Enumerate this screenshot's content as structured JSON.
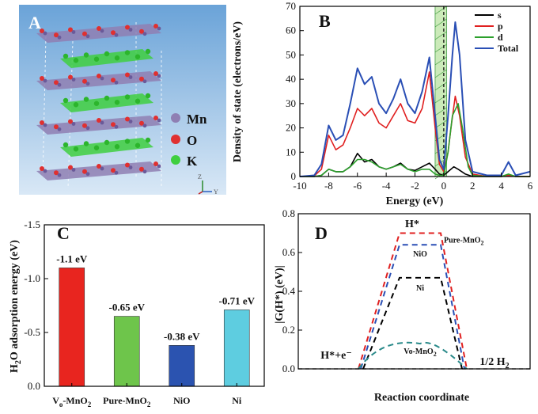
{
  "panel_a": {
    "letter": "A",
    "legend": [
      {
        "label": "Mn",
        "color": "#8f7fb3"
      },
      {
        "label": "O",
        "color": "#e03030"
      },
      {
        "label": "K",
        "color": "#3fcf3f"
      }
    ],
    "axis_z": "Z",
    "axis_y": "Y",
    "colors": {
      "bg_top": "#6aa3d8",
      "bg_bottom": "#d9e8f6",
      "mn": "#8f7fb3",
      "o": "#e03030",
      "k": "#3fcf3f"
    }
  },
  "chart_data": [
    {
      "panel": "B",
      "type": "line",
      "letter": "B",
      "xlabel": "Energy (eV)",
      "ylabel": "Density of state (electrons/eV)",
      "xlim": [
        -10,
        6
      ],
      "ylim": [
        0,
        70
      ],
      "xticks": [
        -10,
        -8,
        -6,
        -4,
        -2,
        0,
        2,
        4,
        6
      ],
      "yticks": [
        0,
        10,
        20,
        30,
        40,
        50,
        60,
        70
      ],
      "xtick_labels": [
        "-10",
        "-8",
        "-6",
        "-4",
        "-2",
        "0",
        "2",
        "4",
        "6"
      ],
      "ytick_labels": [
        "0",
        "10",
        "20",
        "30",
        "40",
        "50",
        "60",
        "70"
      ],
      "fermi_band": [
        -0.6,
        0.2
      ],
      "series": [
        {
          "name": "s",
          "color": "#000000",
          "points": [
            [
              -10,
              0
            ],
            [
              -9,
              0
            ],
            [
              -8.5,
              0.5
            ],
            [
              -8,
              3
            ],
            [
              -7.5,
              2
            ],
            [
              -7,
              2
            ],
            [
              -6.5,
              4
            ],
            [
              -6,
              9.5
            ],
            [
              -5.5,
              6
            ],
            [
              -5,
              7
            ],
            [
              -4.5,
              4
            ],
            [
              -4,
              3
            ],
            [
              -3.5,
              4
            ],
            [
              -3,
              5.5
            ],
            [
              -2.5,
              3
            ],
            [
              -2,
              2.5
            ],
            [
              -1.5,
              4
            ],
            [
              -1,
              5.5
            ],
            [
              -0.6,
              3
            ],
            [
              -0.3,
              1
            ],
            [
              0,
              0.5
            ],
            [
              0.3,
              2
            ],
            [
              0.7,
              4
            ],
            [
              1,
              3
            ],
            [
              1.5,
              1
            ],
            [
              2,
              0
            ],
            [
              3,
              0
            ],
            [
              4,
              0
            ],
            [
              4.5,
              0.5
            ],
            [
              5,
              0
            ],
            [
              6,
              0
            ]
          ]
        },
        {
          "name": "p",
          "color": "#e02020",
          "points": [
            [
              -10,
              0
            ],
            [
              -9,
              0.3
            ],
            [
              -8.5,
              3
            ],
            [
              -8,
              17
            ],
            [
              -7.5,
              11
            ],
            [
              -7,
              13
            ],
            [
              -6.5,
              20
            ],
            [
              -6,
              28
            ],
            [
              -5.5,
              25
            ],
            [
              -5,
              28
            ],
            [
              -4.5,
              22
            ],
            [
              -4,
              20
            ],
            [
              -3.5,
              25
            ],
            [
              -3,
              30
            ],
            [
              -2.5,
              23
            ],
            [
              -2,
              22
            ],
            [
              -1.5,
              28
            ],
            [
              -1,
              43
            ],
            [
              -0.6,
              20
            ],
            [
              -0.3,
              5
            ],
            [
              0,
              2
            ],
            [
              0.3,
              10
            ],
            [
              0.5,
              20
            ],
            [
              0.8,
              33
            ],
            [
              1.1,
              25
            ],
            [
              1.5,
              8
            ],
            [
              2,
              1
            ],
            [
              3,
              0
            ],
            [
              4,
              0
            ],
            [
              4.5,
              0.5
            ],
            [
              5,
              0
            ],
            [
              6,
              0
            ]
          ]
        },
        {
          "name": "d",
          "color": "#2ca02c",
          "points": [
            [
              -10,
              0
            ],
            [
              -9,
              0
            ],
            [
              -8.5,
              0.5
            ],
            [
              -8,
              3
            ],
            [
              -7.5,
              2
            ],
            [
              -7,
              2
            ],
            [
              -6.5,
              4
            ],
            [
              -6,
              7
            ],
            [
              -5.5,
              7
            ],
            [
              -5,
              6
            ],
            [
              -4.5,
              4
            ],
            [
              -4,
              3
            ],
            [
              -3.5,
              4
            ],
            [
              -3,
              5
            ],
            [
              -2.5,
              3
            ],
            [
              -2,
              2
            ],
            [
              -1.5,
              3
            ],
            [
              -1,
              3
            ],
            [
              -0.6,
              1
            ],
            [
              -0.3,
              0.5
            ],
            [
              0,
              0.5
            ],
            [
              0.3,
              10
            ],
            [
              0.6,
              25
            ],
            [
              1,
              30
            ],
            [
              1.3,
              20
            ],
            [
              1.7,
              4
            ],
            [
              2,
              0.5
            ],
            [
              3,
              0
            ],
            [
              4,
              0
            ],
            [
              4.5,
              1
            ],
            [
              5,
              0
            ],
            [
              6,
              0
            ]
          ]
        },
        {
          "name": "Total",
          "color": "#2a4fb5",
          "points": [
            [
              -10,
              0
            ],
            [
              -9,
              0.5
            ],
            [
              -8.5,
              5
            ],
            [
              -8,
              21
            ],
            [
              -7.5,
              15
            ],
            [
              -7,
              17
            ],
            [
              -6.5,
              30
            ],
            [
              -6,
              44.5
            ],
            [
              -5.5,
              38
            ],
            [
              -5,
              41
            ],
            [
              -4.5,
              30
            ],
            [
              -4,
              26
            ],
            [
              -3.5,
              32
            ],
            [
              -3,
              40
            ],
            [
              -2.5,
              30
            ],
            [
              -2,
              26
            ],
            [
              -1.5,
              35
            ],
            [
              -1,
              49
            ],
            [
              -0.6,
              25
            ],
            [
              -0.3,
              7
            ],
            [
              0,
              3
            ],
            [
              0.3,
              25
            ],
            [
              0.6,
              50
            ],
            [
              0.8,
              63.5
            ],
            [
              1.1,
              50
            ],
            [
              1.5,
              15
            ],
            [
              2,
              2
            ],
            [
              3,
              0.5
            ],
            [
              4,
              0.5
            ],
            [
              4.5,
              6
            ],
            [
              5,
              0.5
            ],
            [
              6,
              2
            ]
          ]
        }
      ]
    },
    {
      "panel": "C",
      "type": "bar",
      "letter": "C",
      "categories": [
        "Vo-MnO2",
        "Pure-MnO2",
        "NiO",
        "Ni"
      ],
      "category_labels": [
        {
          "main": "V",
          "sub": "o",
          "rest": "-MnO",
          "sub2": "2"
        },
        {
          "main": "Pure-MnO",
          "sub": "",
          "rest": "",
          "sub2": "2"
        },
        {
          "main": "NiO",
          "sub": "",
          "rest": "",
          "sub2": ""
        },
        {
          "main": "Ni",
          "sub": "",
          "rest": "",
          "sub2": ""
        }
      ],
      "values": [
        -1.1,
        -0.65,
        -0.38,
        -0.71
      ],
      "data_labels": [
        "-1.1 eV",
        "-0.65 eV",
        "-0.38 eV",
        "-0.71 eV"
      ],
      "colors": [
        "#e8251f",
        "#6ec54b",
        "#2b53b0",
        "#5ecde0"
      ],
      "ylabel_parts": {
        "main": "H",
        "sub": "2",
        "rest": "O adsorption energy (eV)"
      },
      "ylim": [
        0,
        -1.5
      ],
      "yticks": [
        0.0,
        -0.5,
        -1.0,
        -1.5
      ],
      "ytick_labels": [
        "0.0",
        "-0.5",
        "-1.0",
        "-1.5"
      ]
    },
    {
      "panel": "D",
      "type": "line",
      "letter": "D",
      "xlabel": "Reaction coordinate",
      "ylabel": "|G(H*) (eV)|",
      "ylim": [
        0,
        0.8
      ],
      "yticks": [
        0.0,
        0.2,
        0.4,
        0.6,
        0.8
      ],
      "ytick_labels": [
        "0.0",
        "0.2",
        "0.4",
        "0.6",
        "0.8"
      ],
      "state_labels": {
        "initial": "H*+e⁻",
        "intermediate": "H*",
        "final_main": "1/2 H",
        "final_sub": "2"
      },
      "series": [
        {
          "name": "Pure-MnO2",
          "label_main": "Pure-MnO",
          "label_sub": "2",
          "value": 0.7,
          "color": "#e02020"
        },
        {
          "name": "NiO",
          "label_main": "NiO",
          "label_sub": "",
          "value": 0.64,
          "color": "#2a4fb5"
        },
        {
          "name": "Ni",
          "label_main": "Ni",
          "label_sub": "",
          "value": 0.47,
          "color": "#000000"
        },
        {
          "name": "Vo-MnO2",
          "label_main": "Vo-MnO",
          "label_sub": "2",
          "value": 0.13,
          "color": "#2a8a8a"
        }
      ]
    }
  ]
}
